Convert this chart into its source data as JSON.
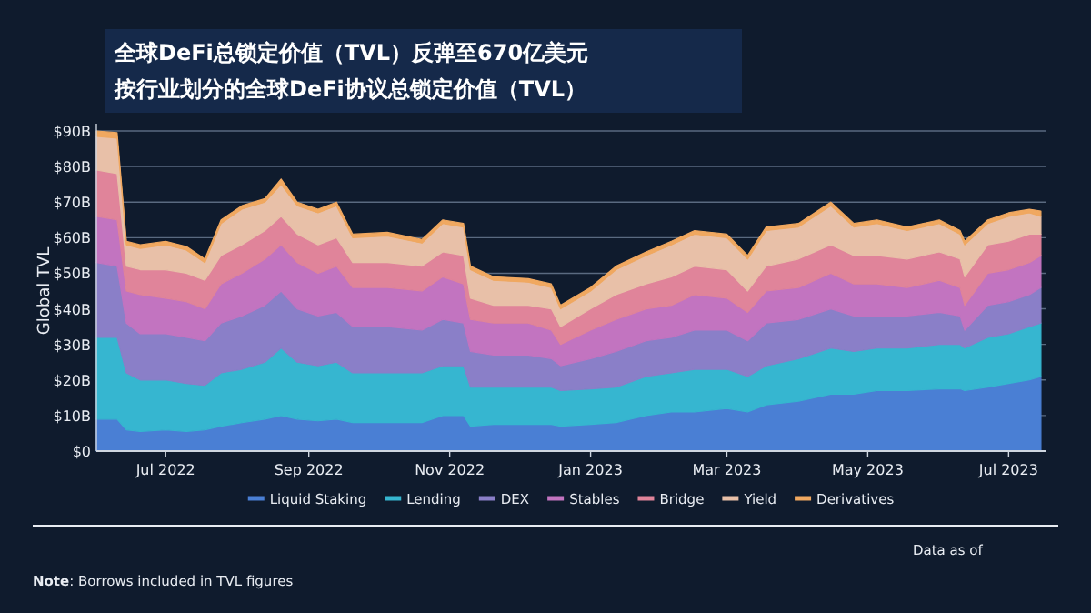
{
  "chart_data": {
    "type": "area",
    "stacked": true,
    "title": "全球DeFi总锁定价值（TVL）反弹至670亿美元",
    "subtitle": "按行业划分的全球DeFi协议总锁定价值（TVL）",
    "ylabel": "Global TVL",
    "x": [
      "2022-06-01",
      "2022-06-10",
      "2022-06-14",
      "2022-06-20",
      "2022-07-01",
      "2022-07-10",
      "2022-07-18",
      "2022-07-25",
      "2022-08-03",
      "2022-08-13",
      "2022-08-20",
      "2022-08-27",
      "2022-09-05",
      "2022-09-13",
      "2022-09-20",
      "2022-10-05",
      "2022-10-20",
      "2022-10-29",
      "2022-11-07",
      "2022-11-10",
      "2022-11-20",
      "2022-12-05",
      "2022-12-15",
      "2022-12-19",
      "2023-01-01",
      "2023-01-12",
      "2023-01-25",
      "2023-02-05",
      "2023-02-15",
      "2023-03-01",
      "2023-03-10",
      "2023-03-18",
      "2023-04-01",
      "2023-04-15",
      "2023-04-25",
      "2023-05-05",
      "2023-05-18",
      "2023-06-01",
      "2023-06-10",
      "2023-06-12",
      "2023-06-22",
      "2023-07-01",
      "2023-07-10",
      "2023-07-15"
    ],
    "series": [
      {
        "name": "Liquid Staking",
        "color": "#4a7fd4",
        "values": [
          9,
          9,
          6,
          5.5,
          6,
          5.5,
          6,
          7,
          8,
          9,
          10,
          9,
          8.5,
          9,
          8,
          8,
          8,
          10,
          10,
          7,
          7.5,
          7.5,
          7.5,
          7,
          7.5,
          8,
          10,
          11,
          11,
          12,
          11,
          13,
          14,
          16,
          16,
          17,
          17,
          17.5,
          17.5,
          17,
          18,
          19,
          20,
          21
        ]
      },
      {
        "name": "Lending",
        "color": "#36b6d0",
        "values": [
          23,
          23,
          16,
          14.5,
          14,
          13.5,
          12.5,
          15,
          15,
          16,
          19,
          16,
          15.5,
          16,
          14,
          14,
          14,
          14,
          14,
          11,
          10.5,
          10.5,
          10.5,
          10,
          10,
          10,
          11,
          11,
          12,
          11,
          10,
          11,
          12,
          13,
          12,
          12,
          12,
          12.5,
          12.5,
          12,
          14,
          14,
          15,
          15
        ]
      },
      {
        "name": "DEX",
        "color": "#8a7fc8",
        "values": [
          21,
          20,
          14,
          13,
          13,
          13,
          12.5,
          14,
          15,
          16,
          16,
          15,
          14,
          14,
          13,
          13,
          12,
          13,
          12,
          10,
          9,
          9,
          8,
          7,
          8.5,
          10,
          10,
          10,
          11,
          11,
          10,
          12,
          11,
          11,
          10,
          9,
          9,
          9,
          8,
          5,
          9,
          9,
          9,
          10
        ]
      },
      {
        "name": "Stables",
        "color": "#c274c0",
        "values": [
          13,
          13,
          9,
          11,
          10,
          10,
          9,
          11,
          12,
          13,
          13,
          13,
          12,
          13,
          11,
          11,
          11,
          12,
          11,
          9,
          9,
          9,
          8,
          6,
          8,
          9,
          9,
          9,
          10,
          9,
          8,
          9,
          9,
          10,
          9,
          9,
          8,
          9,
          8,
          7,
          9,
          9,
          9,
          9
        ]
      },
      {
        "name": "Bridge",
        "color": "#e0849a",
        "values": [
          13,
          13,
          7,
          7,
          8,
          8,
          8,
          8,
          8,
          8,
          8,
          8,
          8,
          8,
          7,
          7,
          7,
          7,
          8,
          6,
          5,
          5,
          6,
          5,
          6,
          7,
          7,
          8,
          8,
          8,
          6,
          7,
          8,
          8,
          8,
          8,
          8,
          8,
          8,
          8,
          8,
          8,
          8,
          6
        ]
      },
      {
        "name": "Yield",
        "color": "#e8c0a8",
        "values": [
          9.5,
          10,
          6,
          6,
          7,
          6.5,
          5,
          9,
          10,
          8,
          9,
          8,
          9,
          9,
          7,
          7.5,
          6.5,
          8,
          8,
          8,
          7,
          6.5,
          6,
          5,
          5,
          7,
          8,
          9,
          9,
          9,
          9,
          10,
          9,
          11,
          8,
          9,
          8,
          8,
          7,
          9,
          6,
          7,
          6,
          5
        ]
      },
      {
        "name": "Derivatives",
        "color": "#f0a860",
        "values": [
          1.5,
          1.5,
          1,
          1,
          1,
          1,
          1,
          1,
          1,
          1,
          1.5,
          1,
          1,
          1,
          1,
          1,
          1,
          1,
          1,
          1,
          1,
          1,
          1,
          1,
          1,
          1,
          1,
          1,
          1,
          1,
          1,
          1,
          1,
          1,
          1,
          1,
          1,
          1,
          1,
          1,
          1,
          1,
          1,
          1.5
        ]
      }
    ],
    "xlim": [
      "2022-06-01",
      "2023-07-17"
    ],
    "xticks": [
      {
        "value": "2022-07-01",
        "label": "Jul 2022"
      },
      {
        "value": "2022-09-01",
        "label": "Sep 2022"
      },
      {
        "value": "2022-11-01",
        "label": "Nov 2022"
      },
      {
        "value": "2023-01-01",
        "label": "Jan 2023"
      },
      {
        "value": "2023-03-01",
        "label": "Mar 2023"
      },
      {
        "value": "2023-05-01",
        "label": "May 2023"
      },
      {
        "value": "2023-07-01",
        "label": "Jul 2023"
      }
    ],
    "ylim": [
      0,
      90
    ],
    "yticks": [
      {
        "value": 0,
        "label": "$0"
      },
      {
        "value": 10,
        "label": "$10B"
      },
      {
        "value": 20,
        "label": "$20B"
      },
      {
        "value": 30,
        "label": "$30B"
      },
      {
        "value": 40,
        "label": "$40B"
      },
      {
        "value": 50,
        "label": "$50B"
      },
      {
        "value": 60,
        "label": "$60B"
      },
      {
        "value": 70,
        "label": "$70B"
      },
      {
        "value": 80,
        "label": "$80B"
      },
      {
        "value": 90,
        "label": "$90B"
      }
    ],
    "grid": "y",
    "legend": "bottom",
    "annotations": [
      "**Note**: Borrows included in TVL figures",
      "Data as of"
    ]
  }
}
